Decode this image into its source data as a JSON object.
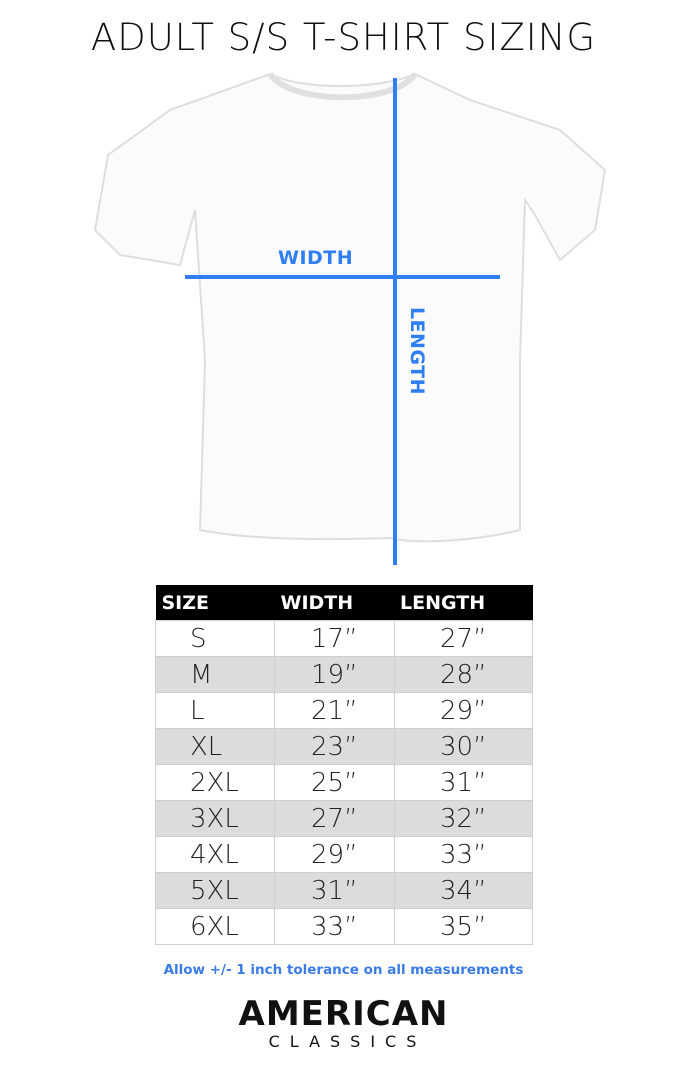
{
  "title": "ADULT S/S T-SHIRT SIZING",
  "diagram": {
    "width_label": "WIDTH",
    "length_label": "LENGTH",
    "line_color": "#2f7ef2"
  },
  "table": {
    "headers": [
      "SIZE",
      "WIDTH",
      "LENGTH"
    ],
    "rows": [
      [
        "S",
        "17”",
        "27”"
      ],
      [
        "M",
        "19”",
        "28”"
      ],
      [
        "L",
        "21”",
        "29”"
      ],
      [
        "XL",
        "23”",
        "30”"
      ],
      [
        "2XL",
        "25”",
        "31”"
      ],
      [
        "3XL",
        "27”",
        "32”"
      ],
      [
        "4XL",
        "29”",
        "33”"
      ],
      [
        "5XL",
        "31”",
        "34”"
      ],
      [
        "6XL",
        "33”",
        "35”"
      ]
    ]
  },
  "note": "Allow +/- 1 inch tolerance on all measurements",
  "logo": {
    "line1": "AMERICAN",
    "line2": "CLASSICS"
  }
}
